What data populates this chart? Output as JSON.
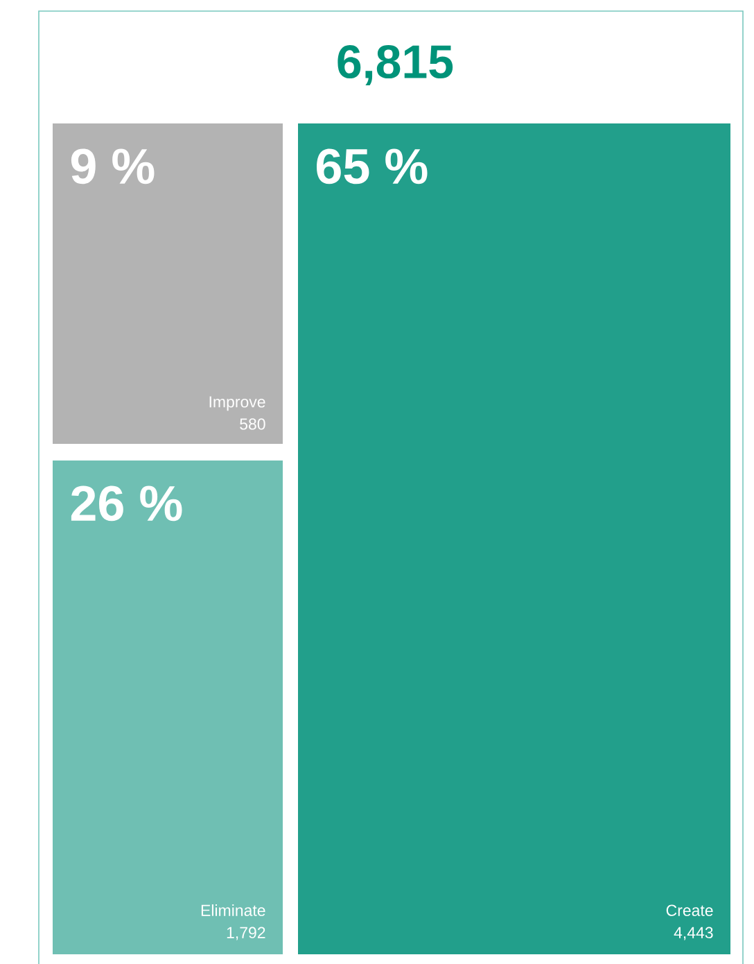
{
  "chart_data": {
    "type": "other",
    "title": "6,815",
    "categories": [
      "Improve",
      "Eliminate",
      "Create"
    ],
    "values": [
      580,
      1792,
      4443
    ],
    "colors": [
      "#b3b3b3",
      "#6fbfb3",
      "#229f8b"
    ],
    "value_labels": [
      "580",
      "1,792",
      "4,443"
    ],
    "annotations": [
      {
        "text": "9 %",
        "x": "Improve"
      },
      {
        "text": "26 %",
        "x": "Eliminate"
      },
      {
        "text": "65 %",
        "x": "Create"
      }
    ]
  }
}
